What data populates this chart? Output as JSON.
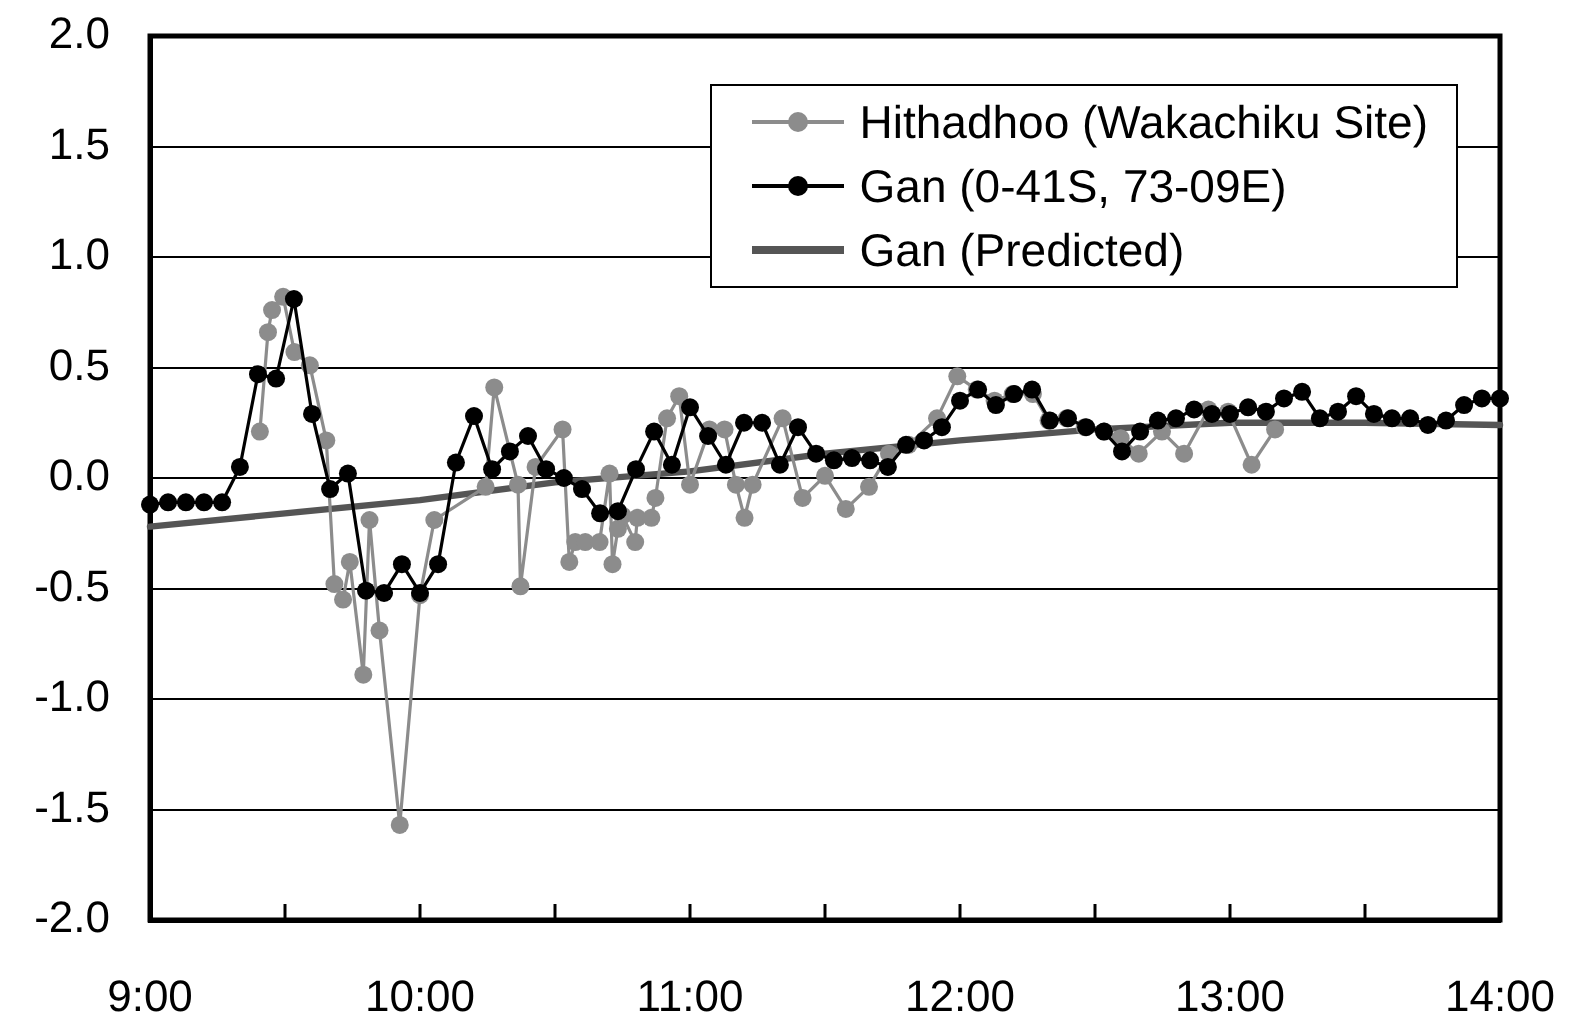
{
  "chart_data": {
    "type": "line",
    "marker": "circle",
    "grid": "y",
    "legend": "top right",
    "xlim": [
      9,
      14
    ],
    "xticks": [
      {
        "value": 9,
        "label": "9:00"
      },
      {
        "value": 9.5,
        "label": null
      },
      {
        "value": 10,
        "label": "10:00"
      },
      {
        "value": 10.5,
        "label": null
      },
      {
        "value": 11,
        "label": "11:00"
      },
      {
        "value": 11.5,
        "label": null
      },
      {
        "value": 12,
        "label": "12:00"
      },
      {
        "value": 12.5,
        "label": null
      },
      {
        "value": 13,
        "label": "13:00"
      },
      {
        "value": 13.5,
        "label": null
      },
      {
        "value": 14,
        "label": "14:00"
      }
    ],
    "ylim": [
      -2,
      2
    ],
    "yticks": [
      {
        "value": -2,
        "label": "-2.0"
      },
      {
        "value": -1.5,
        "label": "-1.5"
      },
      {
        "value": -1,
        "label": "-1.0"
      },
      {
        "value": -0.5,
        "label": "-0.5"
      },
      {
        "value": 0,
        "label": "0.0"
      },
      {
        "value": 0.5,
        "label": "0.5"
      },
      {
        "value": 1,
        "label": "1.0"
      },
      {
        "value": 1.5,
        "label": "1.5"
      },
      {
        "value": 2,
        "label": "2.0"
      }
    ],
    "series": [
      {
        "name": "Hithadhoo (Wakachiku Site)",
        "color": "#8c8c8c",
        "x": [
          9.407,
          9.437,
          9.452,
          9.493,
          9.535,
          9.592,
          9.653,
          9.683,
          9.715,
          9.74,
          9.79,
          9.813,
          9.85,
          9.925,
          10.0,
          10.053,
          10.243,
          10.275,
          10.363,
          10.372,
          10.428,
          10.528,
          10.553,
          10.575,
          10.612,
          10.665,
          10.702,
          10.713,
          10.733,
          10.75,
          10.797,
          10.805,
          10.857,
          10.872,
          10.915,
          10.96,
          11.0,
          11.072,
          11.128,
          11.17,
          11.202,
          11.232,
          11.343,
          11.417,
          11.5,
          11.577,
          11.663,
          11.737,
          11.81,
          11.915,
          11.99,
          12.062,
          12.128,
          12.195,
          12.27,
          12.328,
          12.395,
          12.462,
          12.535,
          12.595,
          12.662,
          12.748,
          12.83,
          12.92,
          12.993,
          13.08,
          13.167
        ],
        "values": [
          0.21,
          0.66,
          0.76,
          0.82,
          0.57,
          0.51,
          0.17,
          -0.48,
          -0.55,
          -0.38,
          -0.89,
          -0.19,
          -0.69,
          -1.57,
          -0.53,
          -0.19,
          -0.04,
          0.41,
          -0.03,
          -0.49,
          0.05,
          0.22,
          -0.38,
          -0.29,
          -0.29,
          -0.29,
          0.02,
          -0.39,
          -0.23,
          -0.17,
          -0.29,
          -0.18,
          -0.18,
          -0.09,
          0.27,
          0.37,
          -0.03,
          0.22,
          0.22,
          -0.03,
          -0.18,
          -0.03,
          0.27,
          -0.09,
          0.01,
          -0.14,
          -0.04,
          0.11,
          0.15,
          0.27,
          0.46,
          0.4,
          0.35,
          0.38,
          0.38,
          0.26,
          0.27,
          0.23,
          0.21,
          0.18,
          0.11,
          0.21,
          0.11,
          0.31,
          0.3,
          0.06,
          0.22
        ]
      },
      {
        "name": "Gan (0-41S, 73-09E)",
        "color": "#000000",
        "x": [
          9,
          9.067,
          9.133,
          9.2,
          9.267,
          9.333,
          9.4,
          9.467,
          9.533,
          9.6,
          9.667,
          9.733,
          9.8,
          9.867,
          9.933,
          10,
          10.067,
          10.133,
          10.2,
          10.267,
          10.333,
          10.4,
          10.467,
          10.533,
          10.6,
          10.667,
          10.733,
          10.8,
          10.867,
          10.933,
          11,
          11.067,
          11.133,
          11.2,
          11.267,
          11.333,
          11.4,
          11.467,
          11.533,
          11.6,
          11.667,
          11.733,
          11.8,
          11.867,
          11.933,
          12,
          12.067,
          12.133,
          12.2,
          12.267,
          12.333,
          12.4,
          12.467,
          12.533,
          12.6,
          12.667,
          12.733,
          12.8,
          12.867,
          12.933,
          13,
          13.067,
          13.133,
          13.2,
          13.267,
          13.333,
          13.4,
          13.467,
          13.533,
          13.6,
          13.667,
          13.733,
          13.8,
          13.867,
          13.933,
          14
        ],
        "values": [
          -0.12,
          -0.11,
          -0.11,
          -0.11,
          -0.11,
          0.05,
          0.47,
          0.45,
          0.81,
          0.29,
          -0.05,
          0.02,
          -0.51,
          -0.52,
          -0.39,
          -0.52,
          -0.39,
          0.07,
          0.28,
          0.04,
          0.12,
          0.19,
          0.04,
          0.0,
          -0.05,
          -0.16,
          -0.15,
          0.04,
          0.21,
          0.06,
          0.32,
          0.19,
          0.06,
          0.25,
          0.25,
          0.06,
          0.23,
          0.11,
          0.08,
          0.09,
          0.08,
          0.05,
          0.15,
          0.17,
          0.23,
          0.35,
          0.4,
          0.33,
          0.38,
          0.4,
          0.26,
          0.27,
          0.23,
          0.21,
          0.12,
          0.21,
          0.26,
          0.27,
          0.31,
          0.29,
          0.29,
          0.32,
          0.3,
          0.36,
          0.39,
          0.27,
          0.3,
          0.37,
          0.29,
          0.27,
          0.27,
          0.24,
          0.26,
          0.33,
          0.36,
          0.36
        ]
      },
      {
        "name": "Gan (Predicted)",
        "color": "#555555",
        "marker": "none",
        "x": [
          9,
          9.5,
          10,
          10.5,
          11,
          11.5,
          12,
          12.5,
          13,
          13.5,
          14
        ],
        "values": [
          -0.22,
          -0.16,
          -0.1,
          -0.02,
          0.03,
          0.11,
          0.17,
          0.22,
          0.25,
          0.25,
          0.24
        ]
      }
    ]
  }
}
